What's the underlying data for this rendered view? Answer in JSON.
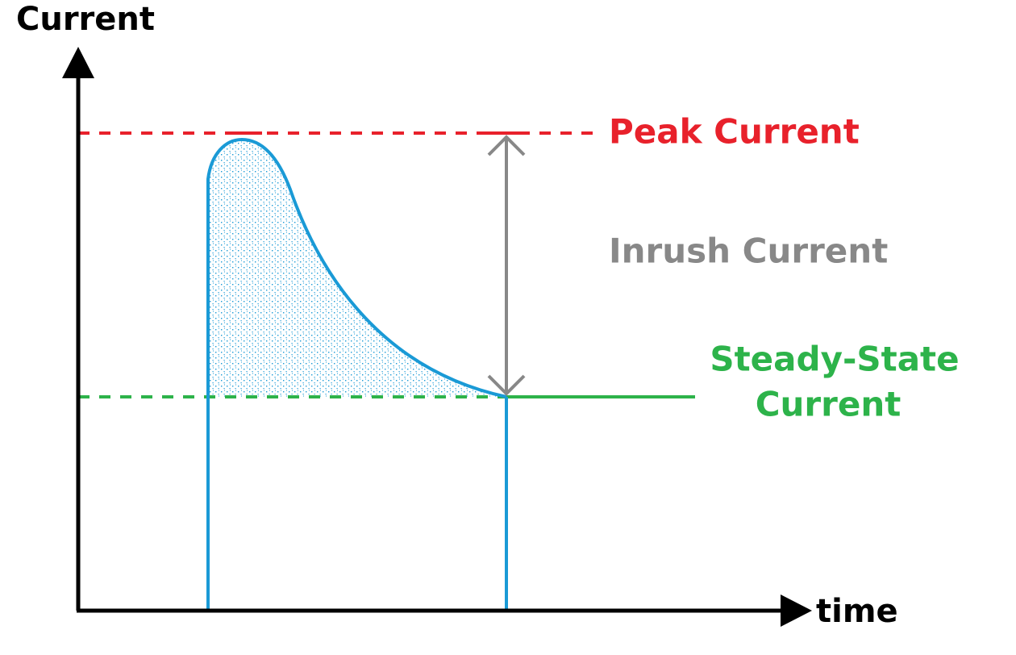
{
  "axes": {
    "y_label": "Current",
    "x_label": "time"
  },
  "labels": {
    "peak": "Peak Current",
    "inrush": "Inrush Current",
    "steady_state": [
      "Steady-State",
      "Current"
    ]
  }
}
